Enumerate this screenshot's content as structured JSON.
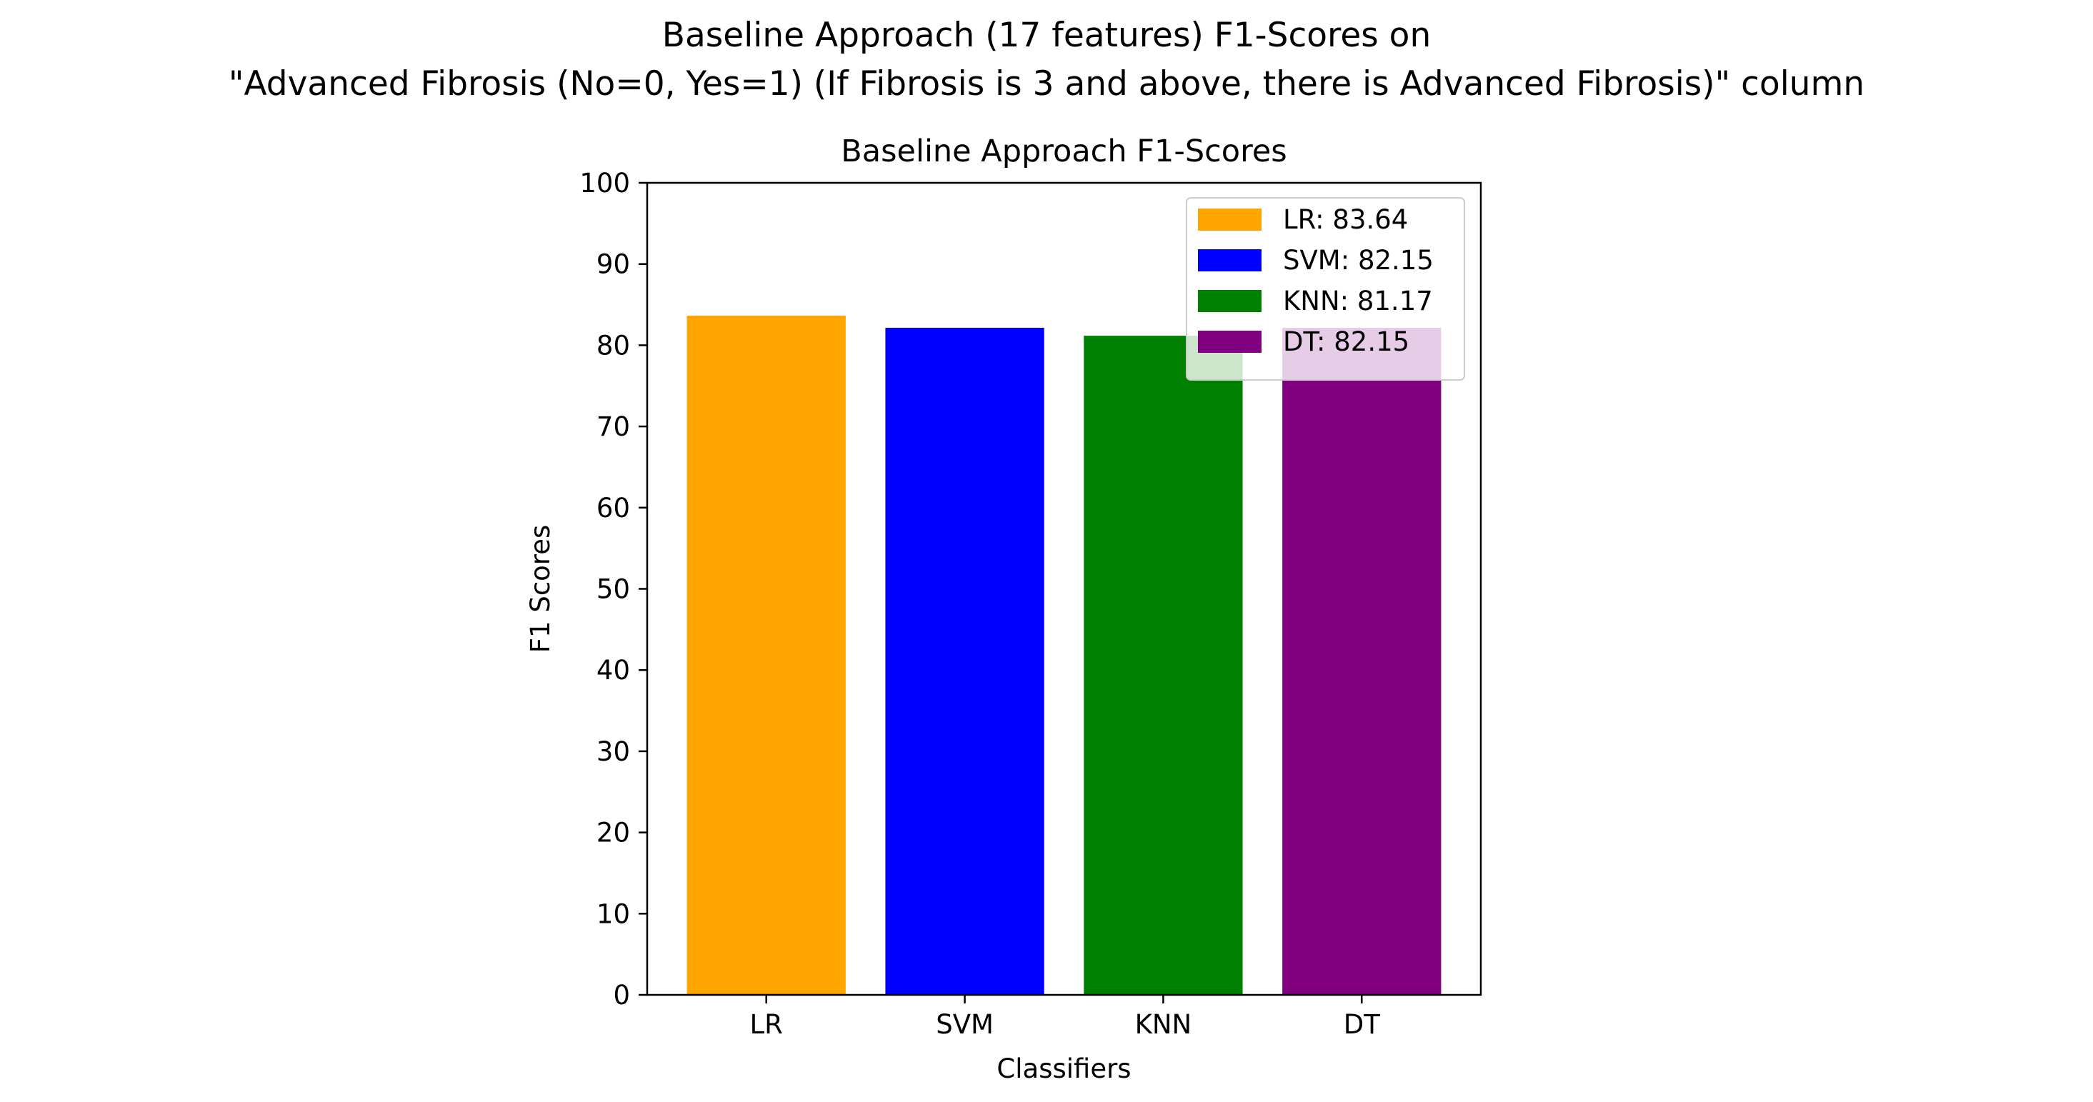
{
  "figure": {
    "suptitle_line1": "Baseline Approach (17 features) F1-Scores on",
    "suptitle_line2": "\"Advanced Fibrosis (No=0, Yes=1) (If Fibrosis is 3 and above, there is Advanced Fibrosis)\" column"
  },
  "chart_data": {
    "type": "bar",
    "title": "Baseline Approach F1-Scores",
    "xlabel": "Classifiers",
    "ylabel": "F1 Scores",
    "categories": [
      "LR",
      "SVM",
      "KNN",
      "DT"
    ],
    "values": [
      83.64,
      82.15,
      81.17,
      82.15
    ],
    "colors": [
      "#ffa500",
      "#0000ff",
      "#008000",
      "#800080"
    ],
    "ylim": [
      0,
      100
    ],
    "yticks": [
      0,
      10,
      20,
      30,
      40,
      50,
      60,
      70,
      80,
      90,
      100
    ],
    "grid": false,
    "legend": {
      "placement": "top-right",
      "entries": [
        "LR: 83.64",
        "SVM: 82.15",
        "KNN: 81.17",
        "DT: 82.15"
      ]
    }
  }
}
